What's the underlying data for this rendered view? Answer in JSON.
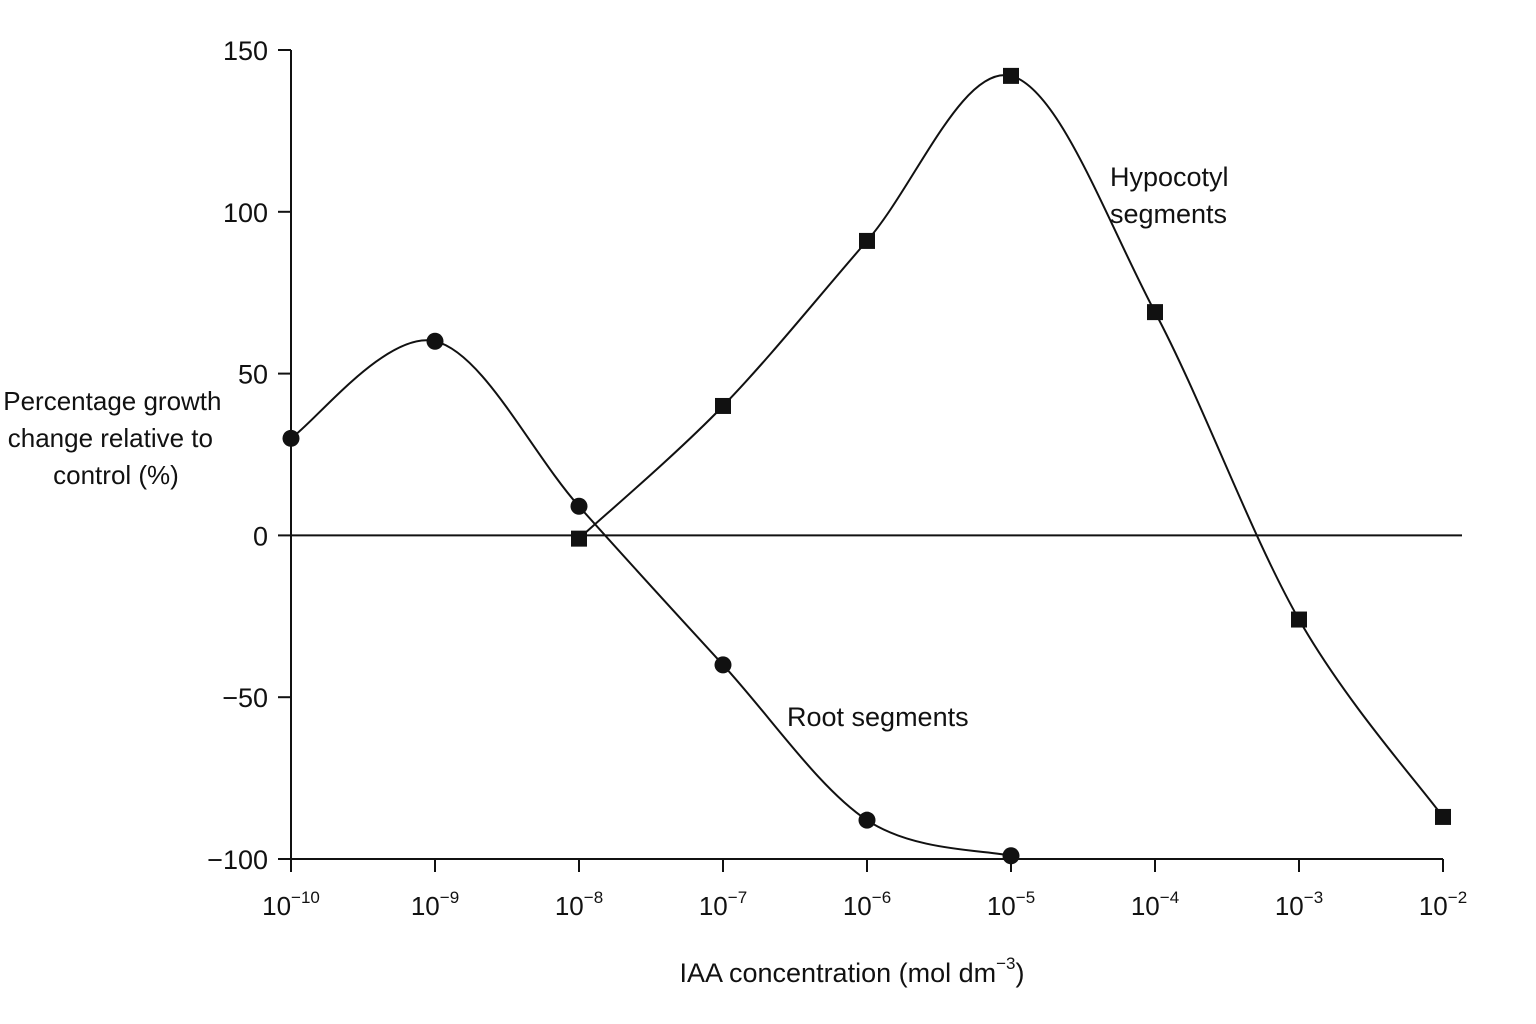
{
  "chart_data": {
    "type": "line",
    "xlabel": {
      "prefix": "IAA concentration (mol dm",
      "sup": "−3",
      "suffix": ")"
    },
    "ylabel_lines": [
      "Percentage growth",
      "change relative to",
      "control (%)"
    ],
    "y_ticks": [
      150,
      100,
      50,
      0,
      -50,
      -100
    ],
    "y_tick_labels": [
      "150",
      "100",
      "50",
      "0",
      "−50",
      "−100"
    ],
    "ylim": [
      -100,
      150
    ],
    "x_scale": "log",
    "x_ticks": [
      {
        "base": "10",
        "exp": "−10",
        "value": 1e-10
      },
      {
        "base": "10",
        "exp": "−9",
        "value": 1e-09
      },
      {
        "base": "10",
        "exp": "−8",
        "value": 1e-08
      },
      {
        "base": "10",
        "exp": "−7",
        "value": 1e-07
      },
      {
        "base": "10",
        "exp": "−6",
        "value": 1e-06
      },
      {
        "base": "10",
        "exp": "−5",
        "value": 1e-05
      },
      {
        "base": "10",
        "exp": "−4",
        "value": 0.0001
      },
      {
        "base": "10",
        "exp": "−3",
        "value": 0.001
      },
      {
        "base": "10",
        "exp": "−2",
        "value": 0.01
      }
    ],
    "reference_line_y": 0,
    "series": [
      {
        "name": "Root segments",
        "marker": "circle",
        "points": [
          {
            "x": 1e-10,
            "y": 30
          },
          {
            "x": 1e-09,
            "y": 60
          },
          {
            "x": 1e-08,
            "y": 9
          },
          {
            "x": 1e-07,
            "y": -40
          },
          {
            "x": 1e-06,
            "y": -88
          },
          {
            "x": 1e-05,
            "y": -99
          }
        ]
      },
      {
        "name_lines": [
          "Hypocotyl",
          "segments"
        ],
        "marker": "square",
        "points": [
          {
            "x": 1e-08,
            "y": -1
          },
          {
            "x": 1e-07,
            "y": 40
          },
          {
            "x": 1e-06,
            "y": 91
          },
          {
            "x": 1e-05,
            "y": 142
          },
          {
            "x": 0.0001,
            "y": 69
          },
          {
            "x": 0.001,
            "y": -26
          },
          {
            "x": 0.01,
            "y": -87
          }
        ]
      }
    ]
  }
}
